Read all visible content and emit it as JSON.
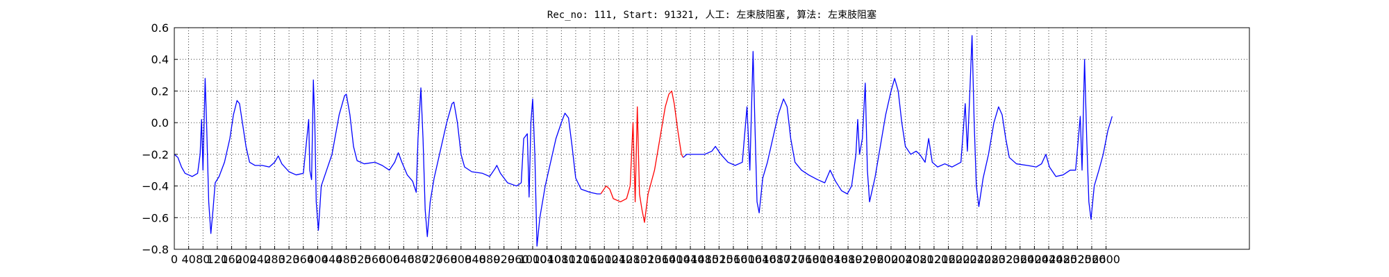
{
  "chart_data": {
    "type": "line",
    "title": "Rec_no: 111, Start: 91321, 人工: 左束肢阻塞, 算法: 左束肢阻塞",
    "xlim": [
      0,
      3000
    ],
    "xticks": [
      0,
      40,
      80,
      120,
      160,
      200,
      240,
      280,
      320,
      360,
      400,
      440,
      480,
      520,
      560,
      600,
      640,
      680,
      720,
      760,
      800,
      840,
      880,
      920,
      960,
      1000,
      1040,
      1080,
      1120,
      1160,
      1200,
      1240,
      1280,
      1320,
      1360,
      1400,
      1440,
      1480,
      1520,
      1560,
      1600,
      1640,
      1680,
      1720,
      1760,
      1800,
      1840,
      1880,
      1920,
      1960,
      2000,
      2040,
      2080,
      2120,
      2160,
      2200,
      2240,
      2280,
      2320,
      2360,
      2400,
      2440,
      2480,
      2520,
      2560,
      2600
    ],
    "ylim": [
      -0.8,
      0.6
    ],
    "yticks": [
      {
        "value": -0.8,
        "label": "−0.8"
      },
      {
        "value": -0.6,
        "label": "−0.6"
      },
      {
        "value": -0.4,
        "label": "−0.4"
      },
      {
        "value": -0.2,
        "label": "−0.2"
      },
      {
        "value": 0,
        "label": "0.0"
      },
      0.2,
      0.4,
      0.6
    ],
    "grid": true,
    "series": [
      {
        "color": "#0000ff",
        "x": [
          0,
          10,
          20,
          30,
          50,
          65,
          72,
          76,
          80,
          86,
          90,
          96,
          102,
          108,
          114,
          125,
          140,
          155,
          165,
          175,
          182,
          190,
          200,
          210,
          225,
          245,
          265,
          280,
          290,
          300,
          320,
          340,
          360,
          375,
          378,
          383,
          388,
          392,
          396,
          402,
          410,
          425,
          440,
          460,
          475,
          480,
          490,
          500,
          510,
          530,
          560,
          580,
          600,
          615,
          625,
          635,
          650,
          665,
          675,
          680,
          688,
          694,
          700,
          706,
          714,
          725,
          740,
          760,
          775,
          780,
          790,
          800,
          810,
          830,
          860,
          880,
          895,
          900,
          910,
          930,
          955,
          968,
          975,
          985,
          990,
          995,
          1000,
          1006,
          1012,
          1020,
          1035,
          1050,
          1065,
          1080,
          1090,
          1100,
          1110,
          1120,
          1135,
          1160,
          1180,
          1190
        ],
        "values": [
          -0.2,
          -0.22,
          -0.28,
          -0.32,
          -0.34,
          -0.32,
          -0.2,
          0.02,
          -0.3,
          0.28,
          0,
          -0.5,
          -0.7,
          -0.55,
          -0.38,
          -0.34,
          -0.25,
          -0.1,
          0.05,
          0.14,
          0.12,
          0,
          -0.15,
          -0.25,
          -0.27,
          -0.27,
          -0.28,
          -0.25,
          -0.21,
          -0.26,
          -0.31,
          -0.33,
          -0.32,
          0.02,
          -0.3,
          -0.36,
          0.27,
          0,
          -0.5,
          -0.68,
          -0.4,
          -0.3,
          -0.2,
          0.05,
          0.17,
          0.18,
          0.05,
          -0.15,
          -0.24,
          -0.26,
          -0.25,
          -0.27,
          -0.3,
          -0.25,
          -0.19,
          -0.25,
          -0.33,
          -0.37,
          -0.44,
          -0.1,
          0.22,
          -0.1,
          -0.55,
          -0.72,
          -0.5,
          -0.35,
          -0.2,
          0,
          0.12,
          0.13,
          0,
          -0.2,
          -0.28,
          -0.31,
          -0.32,
          -0.34,
          -0.29,
          -0.27,
          -0.32,
          -0.38,
          -0.4,
          -0.38,
          -0.1,
          -0.07,
          -0.47,
          0,
          0.15,
          -0.2,
          -0.78,
          -0.6,
          -0.4,
          -0.25,
          -0.1,
          0,
          0.06,
          0.03,
          -0.15,
          -0.35,
          -0.42,
          -0.44,
          -0.45,
          -0.45
        ]
      },
      {
        "color": "#ff0000",
        "x": [
          1190,
          1205,
          1215,
          1225,
          1245,
          1262,
          1272,
          1280,
          1286,
          1292,
          1298,
          1305,
          1312,
          1322,
          1340,
          1355,
          1370,
          1380,
          1388,
          1395,
          1405,
          1415,
          1420
        ],
        "values": [
          -0.45,
          -0.4,
          -0.42,
          -0.48,
          -0.5,
          -0.48,
          -0.4,
          0,
          -0.5,
          0.1,
          -0.45,
          -0.55,
          -0.63,
          -0.45,
          -0.3,
          -0.1,
          0.1,
          0.18,
          0.2,
          0.12,
          -0.05,
          -0.2,
          -0.22
        ]
      },
      {
        "color": "#0000ff",
        "x": [
          1420,
          1430,
          1460,
          1480,
          1500,
          1510,
          1525,
          1545,
          1565,
          1585,
          1598,
          1606,
          1615,
          1620,
          1626,
          1632,
          1642,
          1655,
          1670,
          1685,
          1700,
          1710,
          1720,
          1732,
          1750,
          1770,
          1795,
          1815,
          1830,
          1845,
          1862,
          1878,
          1890,
          1902,
          1907,
          1912,
          1920,
          1928,
          1934,
          1940,
          1955,
          1970,
          1985,
          2000,
          2010,
          2020,
          2030,
          2040,
          2055,
          2070,
          2080,
          2095,
          2105,
          2115,
          2130,
          2150,
          2170,
          2195,
          2207,
          2213,
          2220,
          2226,
          2232,
          2238,
          2245,
          2257,
          2272,
          2287,
          2300,
          2310,
          2320,
          2330,
          2350,
          2380,
          2405,
          2420,
          2432,
          2442,
          2460,
          2480,
          2500,
          2515,
          2528,
          2533,
          2540,
          2546,
          2552,
          2558,
          2567,
          2580,
          2592,
          2605,
          2617
        ],
        "values": [
          -0.22,
          -0.2,
          -0.2,
          -0.2,
          -0.18,
          -0.15,
          -0.2,
          -0.25,
          -0.27,
          -0.25,
          0.1,
          -0.3,
          0.45,
          0,
          -0.5,
          -0.57,
          -0.35,
          -0.25,
          -0.1,
          0.05,
          0.15,
          0.1,
          -0.1,
          -0.25,
          -0.3,
          -0.33,
          -0.36,
          -0.38,
          -0.3,
          -0.37,
          -0.43,
          -0.45,
          -0.4,
          -0.2,
          0.02,
          -0.2,
          -0.1,
          0.25,
          -0.3,
          -0.5,
          -0.35,
          -0.15,
          0.05,
          0.2,
          0.28,
          0.2,
          0,
          -0.15,
          -0.2,
          -0.18,
          -0.2,
          -0.25,
          -0.1,
          -0.25,
          -0.28,
          -0.26,
          -0.28,
          -0.25,
          0.12,
          -0.18,
          0.2,
          0.55,
          0,
          -0.4,
          -0.53,
          -0.35,
          -0.2,
          0,
          0.1,
          0.05,
          -0.1,
          -0.22,
          -0.26,
          -0.27,
          -0.28,
          -0.26,
          -0.2,
          -0.28,
          -0.34,
          -0.33,
          -0.3,
          -0.3,
          0.04,
          -0.3,
          0.4,
          -0.1,
          -0.5,
          -0.61,
          -0.4,
          -0.3,
          -0.2,
          -0.05,
          0.04
        ]
      }
    ]
  }
}
